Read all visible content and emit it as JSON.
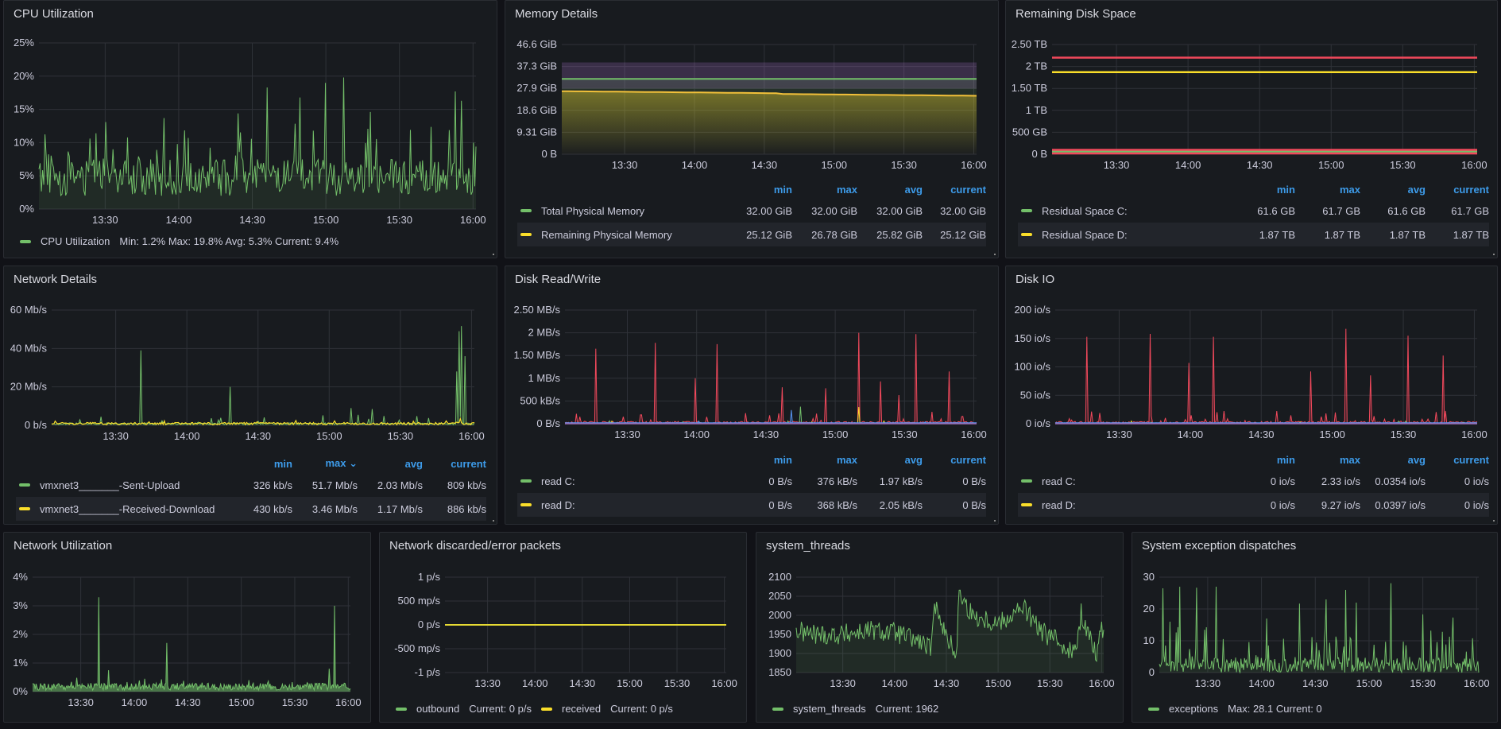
{
  "colors": {
    "green": "#73bf69",
    "yellow": "#fade2a",
    "red": "#f2495c",
    "blue": "#5794f2",
    "purple": "#b877d9",
    "header_blue": "#3d9be9",
    "grid": "#2f3238",
    "panel_bg": "#181b1f",
    "page_bg": "#111217"
  },
  "x_ticks": [
    "13:30",
    "14:00",
    "14:30",
    "15:00",
    "15:30",
    "16:00"
  ],
  "panels": {
    "cpu": {
      "title": "CPU Utilization",
      "legend": {
        "name": "CPU Utilization",
        "stats": "Min: 1.2%  Max: 19.8%  Avg: 5.3%  Current: 9.4%"
      }
    },
    "memory": {
      "title": "Memory Details",
      "headers": [
        "min",
        "max",
        "avg",
        "current"
      ],
      "rows": [
        {
          "name": "Total Physical Memory",
          "values": [
            "32.00 GiB",
            "32.00 GiB",
            "32.00 GiB",
            "32.00 GiB"
          ]
        },
        {
          "name": "Remaining Physical Memory",
          "values": [
            "25.12 GiB",
            "26.78 GiB",
            "25.82 GiB",
            "25.12 GiB"
          ]
        }
      ]
    },
    "disk_space": {
      "title": "Remaining Disk Space",
      "headers": [
        "min",
        "max",
        "avg",
        "current"
      ],
      "rows": [
        {
          "name": "Residual Space C:",
          "values": [
            "61.6 GB",
            "61.7 GB",
            "61.6 GB",
            "61.7 GB"
          ]
        },
        {
          "name": "Residual Space D:",
          "values": [
            "1.87 TB",
            "1.87 TB",
            "1.87 TB",
            "1.87 TB"
          ]
        }
      ]
    },
    "network": {
      "title": "Network Details",
      "headers": [
        "min",
        "max ⌄",
        "avg",
        "current"
      ],
      "rows": [
        {
          "name": "vmxnet3_______-Sent-Upload",
          "values": [
            "326 kb/s",
            "51.7 Mb/s",
            "2.03 Mb/s",
            "809 kb/s"
          ]
        },
        {
          "name": "vmxnet3_______-Received-Download",
          "values": [
            "430 kb/s",
            "3.46 Mb/s",
            "1.17 Mb/s",
            "886 kb/s"
          ]
        }
      ]
    },
    "disk_rw": {
      "title": "Disk Read/Write",
      "headers": [
        "min",
        "max",
        "avg",
        "current"
      ],
      "rows": [
        {
          "name": "read C:",
          "values": [
            "0 B/s",
            "376 kB/s",
            "1.97 kB/s",
            "0 B/s"
          ]
        },
        {
          "name": "read D:",
          "values": [
            "0 B/s",
            "368 kB/s",
            "2.05 kB/s",
            "0 B/s"
          ]
        }
      ]
    },
    "disk_io": {
      "title": "Disk IO",
      "headers": [
        "min",
        "max",
        "avg",
        "current"
      ],
      "rows": [
        {
          "name": "read C:",
          "values": [
            "0 io/s",
            "2.33 io/s",
            "0.0354 io/s",
            "0 io/s"
          ]
        },
        {
          "name": "read D:",
          "values": [
            "0 io/s",
            "9.27 io/s",
            "0.0397 io/s",
            "0 io/s"
          ]
        }
      ]
    },
    "net_util": {
      "title": "Network Utilization"
    },
    "net_err": {
      "title": "Network discarded/error packets",
      "legend": [
        {
          "name": "outbound",
          "stats": "Current: 0 p/s"
        },
        {
          "name": "received",
          "stats": "Current: 0 p/s"
        }
      ]
    },
    "threads": {
      "title": "system_threads",
      "legend": {
        "name": "system_threads",
        "stats": "Current: 1962"
      }
    },
    "exceptions": {
      "title": "System exception dispatches",
      "legend": {
        "name": "exceptions",
        "stats": "Max: 28.1  Current: 0"
      }
    }
  },
  "chart_data": [
    {
      "id": "cpu",
      "type": "line",
      "title": "CPU Utilization",
      "ylabel": "",
      "y_ticks": [
        "0%",
        "5%",
        "10%",
        "15%",
        "20%",
        "25%"
      ],
      "ylim": [
        0,
        25
      ],
      "x_ticks": [
        "13:30",
        "14:00",
        "14:30",
        "15:00",
        "15:30",
        "16:00"
      ],
      "series": [
        {
          "name": "CPU Utilization",
          "color": "green",
          "fill": true,
          "min": 1.2,
          "max": 19.8,
          "avg": 5.3,
          "current": 9.4,
          "peaks": [
            [
              13.5,
              13.1
            ],
            [
              13.9,
              13.7
            ],
            [
              14.4,
              14.4
            ],
            [
              14.6,
              18.3
            ],
            [
              14.82,
              16.8
            ],
            [
              15.0,
              19.0
            ],
            [
              15.12,
              19.8
            ],
            [
              15.3,
              14.6
            ],
            [
              15.88,
              17.7
            ],
            [
              15.92,
              16.3
            ]
          ]
        }
      ]
    },
    {
      "id": "memory",
      "type": "area",
      "title": "Memory Details",
      "y_ticks": [
        "0 B",
        "9.31 GiB",
        "18.6 GiB",
        "27.9 GiB",
        "37.3 GiB",
        "46.6 GiB"
      ],
      "ylim": [
        0,
        46.6
      ],
      "x_ticks": [
        "13:30",
        "14:00",
        "14:30",
        "15:00",
        "15:30",
        "16:00"
      ],
      "series": [
        {
          "name": "Total Physical Memory",
          "color": "green",
          "values_start": 32.0,
          "values_end": 32.0
        },
        {
          "name": "Remaining Physical Memory",
          "color": "yellow",
          "values_start": 26.78,
          "values_end": 25.12
        }
      ],
      "bands": [
        {
          "color": "purple",
          "from": 27.9,
          "to": 39.0
        }
      ]
    },
    {
      "id": "disk_space",
      "type": "line",
      "title": "Remaining Disk Space",
      "y_ticks": [
        "0 B",
        "500 GB",
        "1 TB",
        "1.50 TB",
        "2 TB",
        "2.50 TB"
      ],
      "ylim": [
        0,
        2.5
      ],
      "x_ticks": [
        "13:30",
        "14:00",
        "14:30",
        "15:00",
        "15:30",
        "16:00"
      ],
      "series": [
        {
          "name": "Residual Space C:",
          "color": "green",
          "value": 0.0617
        },
        {
          "name": "Residual Space D:",
          "color": "yellow",
          "value": 1.87
        },
        {
          "name": "unlabeled red 1",
          "color": "red",
          "value": 2.2
        },
        {
          "name": "unlabeled red 2",
          "color": "red",
          "value": 0.1
        },
        {
          "name": "unlabeled red 3",
          "color": "red",
          "value": 0.0
        }
      ]
    },
    {
      "id": "network",
      "type": "line",
      "title": "Network Details",
      "y_ticks": [
        "0 b/s",
        "20 Mb/s",
        "40 Mb/s",
        "60 Mb/s"
      ],
      "ylim": [
        0,
        60
      ],
      "x_ticks": [
        "13:30",
        "14:00",
        "14:30",
        "15:00",
        "15:30",
        "16:00"
      ],
      "series": [
        {
          "name": "vmxnet3_______-Sent-Upload",
          "color": "green",
          "peaks": [
            [
              13.68,
              39
            ],
            [
              14.3,
              20
            ],
            [
              15.15,
              9
            ],
            [
              15.3,
              8.5
            ],
            [
              15.9,
              28
            ],
            [
              15.91,
              49
            ],
            [
              15.93,
              51.7
            ],
            [
              15.95,
              36
            ]
          ]
        },
        {
          "name": "vmxnet3_______-Received-Download",
          "color": "yellow",
          "peaks": [
            [
              15.92,
              3.46
            ]
          ]
        }
      ]
    },
    {
      "id": "disk_rw",
      "type": "line",
      "title": "Disk Read/Write",
      "y_ticks": [
        "0 B/s",
        "500 kB/s",
        "1 MB/s",
        "1.50 MB/s",
        "2 MB/s",
        "2.50 MB/s"
      ],
      "ylim": [
        0,
        2.5
      ],
      "x_ticks": [
        "13:30",
        "14:00",
        "14:30",
        "15:00",
        "15:30",
        "16:00"
      ],
      "series": [
        {
          "name": "red (unlabeled)",
          "color": "red",
          "peaks": [
            [
              13.02,
              1.55
            ],
            [
              13.27,
              1.65
            ],
            [
              13.7,
              1.78
            ],
            [
              13.99,
              1.0
            ],
            [
              14.15,
              1.75
            ],
            [
              14.62,
              0.8
            ],
            [
              14.93,
              0.78
            ],
            [
              15.17,
              2.0
            ],
            [
              15.33,
              0.93
            ],
            [
              15.46,
              0.63
            ],
            [
              15.58,
              1.97
            ],
            [
              15.82,
              1.15
            ]
          ]
        },
        {
          "name": "read C:",
          "color": "green",
          "peaks": [
            [
              14.75,
              0.376
            ]
          ]
        },
        {
          "name": "read D:",
          "color": "yellow",
          "peaks": [
            [
              15.17,
              0.368
            ]
          ]
        },
        {
          "name": "blue (unlabeled)",
          "color": "blue",
          "peaks": [
            [
              14.68,
              0.3
            ]
          ]
        }
      ]
    },
    {
      "id": "disk_io",
      "type": "line",
      "title": "Disk IO",
      "y_ticks": [
        "0 io/s",
        "50 io/s",
        "100 io/s",
        "150 io/s",
        "200 io/s"
      ],
      "ylim": [
        0,
        200
      ],
      "x_ticks": [
        "13:30",
        "14:00",
        "14:30",
        "15:00",
        "15:30",
        "16:00"
      ],
      "series": [
        {
          "name": "red (unlabeled)",
          "color": "red",
          "peaks": [
            [
              13.02,
              130
            ],
            [
              13.27,
              153
            ],
            [
              13.72,
              158
            ],
            [
              13.99,
              107
            ],
            [
              14.16,
              153
            ],
            [
              14.85,
              92
            ],
            [
              15.1,
              167
            ],
            [
              15.27,
              85
            ],
            [
              15.53,
              155
            ],
            [
              15.78,
              120
            ]
          ]
        },
        {
          "name": "read C:",
          "color": "green",
          "peaks": []
        },
        {
          "name": "read D:",
          "color": "yellow",
          "peaks": []
        }
      ]
    },
    {
      "id": "net_util",
      "type": "area",
      "title": "Network Utilization",
      "y_ticks": [
        "0%",
        "1%",
        "2%",
        "3%",
        "4%"
      ],
      "ylim": [
        0,
        4
      ],
      "x_ticks": [
        "13:30",
        "14:00",
        "14:30",
        "15:00",
        "15:30",
        "16:00"
      ],
      "series": [
        {
          "name": "utilization",
          "color": "green",
          "peaks": [
            [
              13.67,
              3.3
            ],
            [
              13.76,
              0.75
            ],
            [
              14.3,
              1.7
            ],
            [
              15.82,
              0.8
            ],
            [
              15.87,
              3.0
            ]
          ]
        }
      ]
    },
    {
      "id": "net_err",
      "type": "line",
      "title": "Network discarded/error packets",
      "y_ticks": [
        "-1 p/s",
        "-500 mp/s",
        "0 p/s",
        "500 mp/s",
        "1 p/s"
      ],
      "ylim": [
        -1,
        1
      ],
      "x_ticks": [
        "13:30",
        "14:00",
        "14:30",
        "15:00",
        "15:30",
        "16:00"
      ],
      "series": [
        {
          "name": "outbound",
          "color": "green",
          "value": 0
        },
        {
          "name": "received",
          "color": "yellow",
          "value": 0
        }
      ]
    },
    {
      "id": "threads",
      "type": "area",
      "title": "system_threads",
      "y_ticks": [
        "1850",
        "1900",
        "1950",
        "2000",
        "2050",
        "2100"
      ],
      "ylim": [
        1850,
        2100
      ],
      "x_ticks": [
        "13:30",
        "14:00",
        "14:30",
        "15:00",
        "15:30",
        "16:00"
      ],
      "series": [
        {
          "name": "system_threads",
          "color": "green",
          "current": 1962,
          "profile": [
            [
              13.0,
              1960
            ],
            [
              13.25,
              1950
            ],
            [
              13.5,
              1950
            ],
            [
              13.75,
              1960
            ],
            [
              14.0,
              1955
            ],
            [
              14.25,
              1930
            ],
            [
              14.35,
              1910
            ],
            [
              14.4,
              2040
            ],
            [
              14.5,
              1940
            ],
            [
              14.6,
              1900
            ],
            [
              14.62,
              2060
            ],
            [
              14.75,
              2000
            ],
            [
              15.0,
              1980
            ],
            [
              15.25,
              2020
            ],
            [
              15.4,
              1960
            ],
            [
              15.6,
              1930
            ],
            [
              15.75,
              1900
            ],
            [
              15.8,
              2005
            ],
            [
              15.95,
              1900
            ],
            [
              16.0,
              1962
            ]
          ]
        }
      ]
    },
    {
      "id": "exceptions",
      "type": "line",
      "title": "System exception dispatches",
      "y_ticks": [
        "0",
        "10",
        "20",
        "30"
      ],
      "ylim": [
        0,
        30
      ],
      "x_ticks": [
        "13:30",
        "14:00",
        "14:30",
        "15:00",
        "15:30",
        "16:00"
      ],
      "series": [
        {
          "name": "exceptions",
          "color": "green",
          "max": 28.1,
          "current": 0,
          "peaks": [
            [
              13.08,
              26.5
            ],
            [
              13.24,
              27
            ],
            [
              13.4,
              26.7
            ],
            [
              13.58,
              27
            ],
            [
              14.05,
              17
            ],
            [
              14.35,
              21.7
            ],
            [
              14.6,
              23
            ],
            [
              14.78,
              26
            ],
            [
              14.88,
              22
            ],
            [
              15.2,
              28.1
            ],
            [
              15.5,
              18.3
            ],
            [
              15.78,
              17.3
            ]
          ]
        }
      ]
    }
  ]
}
